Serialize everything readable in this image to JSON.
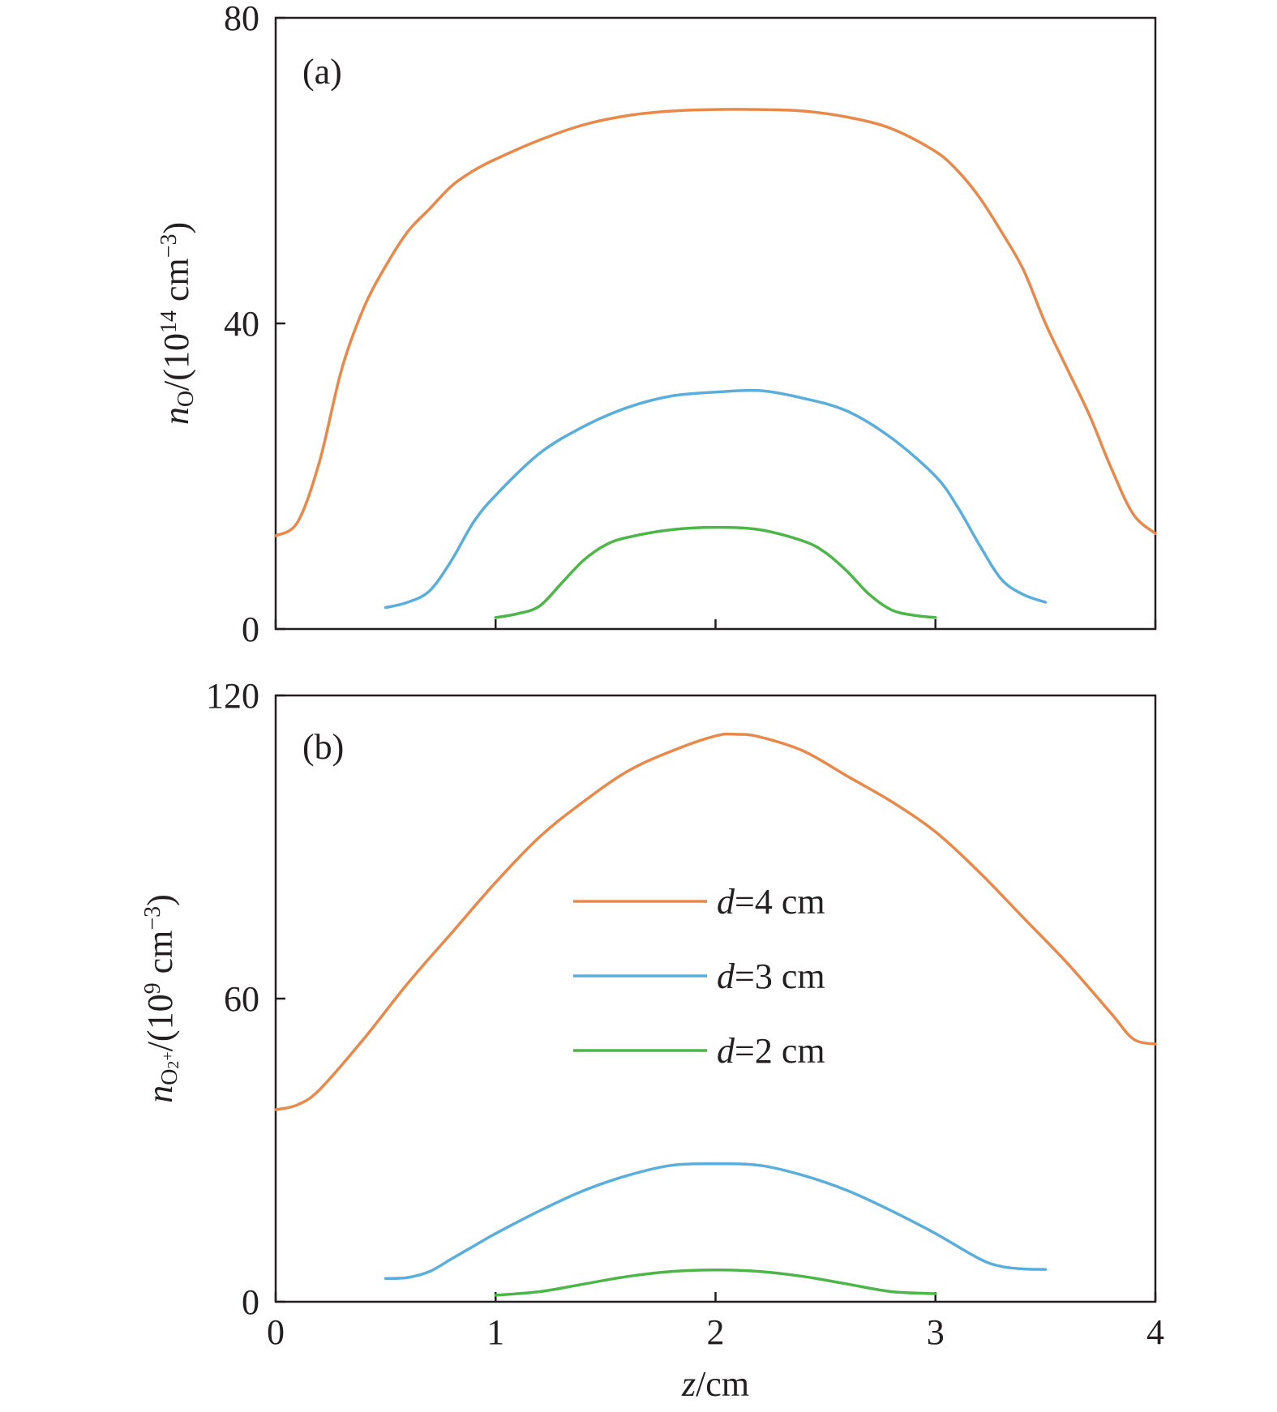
{
  "chart_data": [
    {
      "panel": "(a)",
      "type": "line",
      "ylabel": {
        "var": "n",
        "sub": "O",
        "rest": "/(10",
        "exp": "14",
        "unit": " cm",
        "unitexp": "−3",
        "close": ")"
      },
      "xlim": [
        0,
        4
      ],
      "ylim": [
        0,
        80
      ],
      "yticks": [
        "0",
        "40",
        "80"
      ],
      "series": [
        {
          "name": "d=4 cm",
          "color": "#e8894a",
          "x": [
            0,
            0.1,
            0.2,
            0.3,
            0.4,
            0.5,
            0.6,
            0.7,
            0.8,
            0.9,
            1.0,
            1.2,
            1.4,
            1.6,
            1.8,
            2.0,
            2.2,
            2.4,
            2.6,
            2.8,
            3.0,
            3.1,
            3.2,
            3.3,
            3.4,
            3.5,
            3.6,
            3.7,
            3.8,
            3.9,
            4.0
          ],
          "y": [
            12.2,
            14,
            22,
            34,
            42,
            47.5,
            52,
            55,
            58,
            60,
            61.5,
            64,
            66,
            67.2,
            67.8,
            68,
            68,
            67.8,
            67,
            65.5,
            62.5,
            60,
            56.5,
            52,
            47,
            40,
            34,
            28,
            21,
            15,
            12.5
          ]
        },
        {
          "name": "d=3 cm",
          "color": "#5aaedc",
          "x": [
            0.5,
            0.6,
            0.7,
            0.8,
            0.9,
            1.0,
            1.2,
            1.4,
            1.6,
            1.8,
            2.0,
            2.2,
            2.4,
            2.6,
            2.8,
            3.0,
            3.1,
            3.2,
            3.3,
            3.4,
            3.5
          ],
          "y": [
            2.8,
            3.5,
            5,
            9,
            14,
            17.5,
            23,
            26.5,
            29,
            30.5,
            31,
            31.2,
            30.2,
            28.5,
            25,
            20,
            16,
            11,
            6.5,
            4.5,
            3.5
          ]
        },
        {
          "name": "d=2 cm",
          "color": "#4cb648",
          "x": [
            1.0,
            1.1,
            1.2,
            1.3,
            1.4,
            1.5,
            1.6,
            1.8,
            2.0,
            2.2,
            2.4,
            2.5,
            2.6,
            2.7,
            2.8,
            2.9,
            3.0
          ],
          "y": [
            1.5,
            2,
            3,
            6,
            9,
            11,
            12,
            13,
            13.3,
            13,
            11.5,
            10,
            7.5,
            4.5,
            2.5,
            1.8,
            1.5
          ]
        }
      ]
    },
    {
      "panel": "(b)",
      "type": "line",
      "ylabel": {
        "var": "n",
        "sub": "O",
        "subsub": "2",
        "subsup": "+",
        "rest": "/(10",
        "exp": "9",
        "unit": " cm",
        "unitexp": "−3",
        "close": ")"
      },
      "xlabel": {
        "var": "z",
        "rest": "/cm"
      },
      "xlim": [
        0,
        4
      ],
      "ylim": [
        0,
        120
      ],
      "xticks": [
        "0",
        "1",
        "2",
        "3",
        "4"
      ],
      "yticks": [
        "0",
        "60",
        "120"
      ],
      "legend": "center-right",
      "series": [
        {
          "name": "d=4 cm",
          "color": "#e8894a",
          "x": [
            0,
            0.1,
            0.2,
            0.4,
            0.6,
            0.8,
            1.0,
            1.2,
            1.4,
            1.6,
            1.8,
            2.0,
            2.1,
            2.2,
            2.4,
            2.6,
            2.8,
            3.0,
            3.2,
            3.4,
            3.6,
            3.8,
            3.9,
            4.0
          ],
          "y": [
            38,
            39,
            42,
            52,
            63,
            73,
            83,
            92,
            99,
            105,
            109,
            112,
            112.3,
            111.8,
            109,
            104,
            99,
            93,
            85,
            76,
            67,
            57,
            52,
            51
          ]
        },
        {
          "name": "d=3 cm",
          "color": "#5aaedc",
          "x": [
            0.5,
            0.6,
            0.7,
            0.8,
            0.9,
            1.0,
            1.2,
            1.4,
            1.6,
            1.8,
            2.0,
            2.2,
            2.4,
            2.6,
            2.8,
            3.0,
            3.2,
            3.3,
            3.4,
            3.5
          ],
          "y": [
            4.6,
            4.8,
            6,
            8.5,
            11,
            13.5,
            18,
            22,
            25,
            27,
            27.3,
            27,
            25,
            22,
            18,
            13.5,
            8.5,
            7,
            6.5,
            6.4
          ]
        },
        {
          "name": "d=2 cm",
          "color": "#4cb648",
          "x": [
            1.0,
            1.2,
            1.4,
            1.6,
            1.8,
            2.0,
            2.2,
            2.4,
            2.6,
            2.8,
            3.0
          ],
          "y": [
            1.3,
            2,
            3.5,
            5,
            6,
            6.3,
            6,
            5,
            3.5,
            2,
            1.6
          ]
        }
      ]
    }
  ],
  "legend": [
    {
      "var": "d",
      "rest": "=4 cm",
      "color": "#e8894a"
    },
    {
      "var": "d",
      "rest": "=3 cm",
      "color": "#5aaedc"
    },
    {
      "var": "d",
      "rest": "=2 cm",
      "color": "#4cb648"
    }
  ]
}
